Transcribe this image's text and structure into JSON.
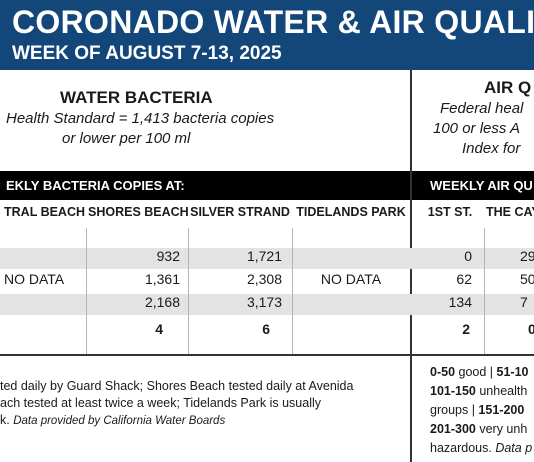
{
  "banner": {
    "title": "CORONADO WATER & AIR QUALITY R",
    "subtitle": "WEEK OF AUGUST 7-13, 2025"
  },
  "water": {
    "title": "WATER BACTERIA",
    "standard_line1": "Health Standard  = 1,413 bacteria copies",
    "standard_line2": "or lower per 100 ml",
    "bar_label": "EKLY BACTERIA COPIES AT:",
    "columns": [
      "TRAL BEACH",
      "SHORES BEACH",
      "SILVER STRAND",
      "TIDELANDS PARK"
    ],
    "rows": [
      [
        "",
        "932",
        "1,721",
        ""
      ],
      [
        "NO DATA",
        "1,361",
        "2,308",
        "NO DATA"
      ],
      [
        "",
        "2,168",
        "3,173",
        ""
      ],
      [
        "",
        "4",
        "6",
        ""
      ]
    ],
    "note_line1": "ted daily by Guard Shack; Shores Beach tested daily at Avenida",
    "note_line2": "ach tested at least twice a week; Tidelands Park is usually",
    "note_line3_plain": "k. ",
    "note_line3_italic": "Data provided by California Water Boards"
  },
  "air": {
    "title": "AIR Q",
    "standard_line1": "Federal heal",
    "standard_line2": "100 or less A",
    "standard_line3": "Index for",
    "bar_label": "WEEKLY AIR QU",
    "columns": [
      "1ST ST.",
      "THE CAY"
    ],
    "rows": [
      [
        "0",
        "29"
      ],
      [
        "62",
        "50"
      ],
      [
        "134",
        "7"
      ],
      [
        "2",
        "0"
      ]
    ],
    "scale_line1_bold": "0-50",
    "scale_line1_rest": " good | ",
    "scale_line1_bold2": "51-10",
    "scale_line2_bold": "101-150",
    "scale_line2_rest": " unhealth",
    "scale_line3_plain": "groups | ",
    "scale_line3_bold": "151-200",
    "scale_line4_bold": "201-300",
    "scale_line4_rest": " very unh",
    "scale_line5_plain": "hazardous. ",
    "scale_line5_italic": "Data p"
  }
}
